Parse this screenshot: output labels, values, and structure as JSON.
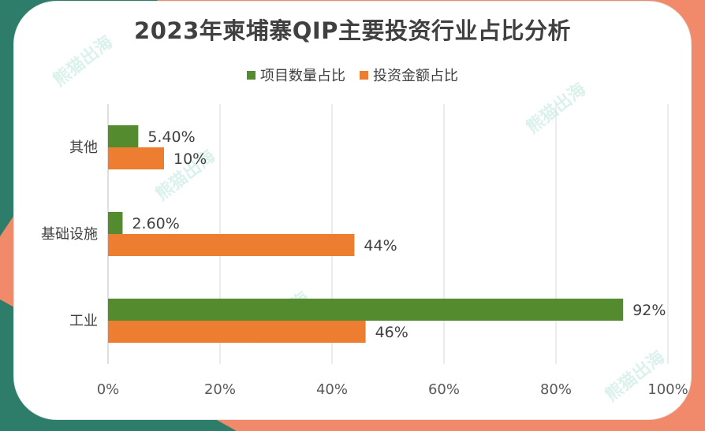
{
  "colors": {
    "series_count": "#558b2f",
    "series_amount": "#ed7d31",
    "corner_teal": "#2e7d6b",
    "corner_orange": "#f08a6a"
  },
  "chart_data": {
    "type": "bar",
    "orientation": "horizontal",
    "title": "2023年柬埔寨QIP主要投资行业占比分析",
    "categories": [
      "其他",
      "基础设施",
      "工业"
    ],
    "series": [
      {
        "name": "项目数量占比",
        "values": [
          5.4,
          2.6,
          92
        ],
        "labels": [
          "5.40%",
          "2.60%",
          "92%"
        ]
      },
      {
        "name": "投资金额占比",
        "values": [
          10,
          44,
          46
        ],
        "labels": [
          "10%",
          "44%",
          "46%"
        ]
      }
    ],
    "x_ticks": [
      "0%",
      "20%",
      "40%",
      "60%",
      "80%",
      "100%"
    ],
    "xlim": [
      0,
      100
    ],
    "grid": true,
    "legend_position": "top"
  },
  "watermark": {
    "text": "熊猫出海"
  }
}
